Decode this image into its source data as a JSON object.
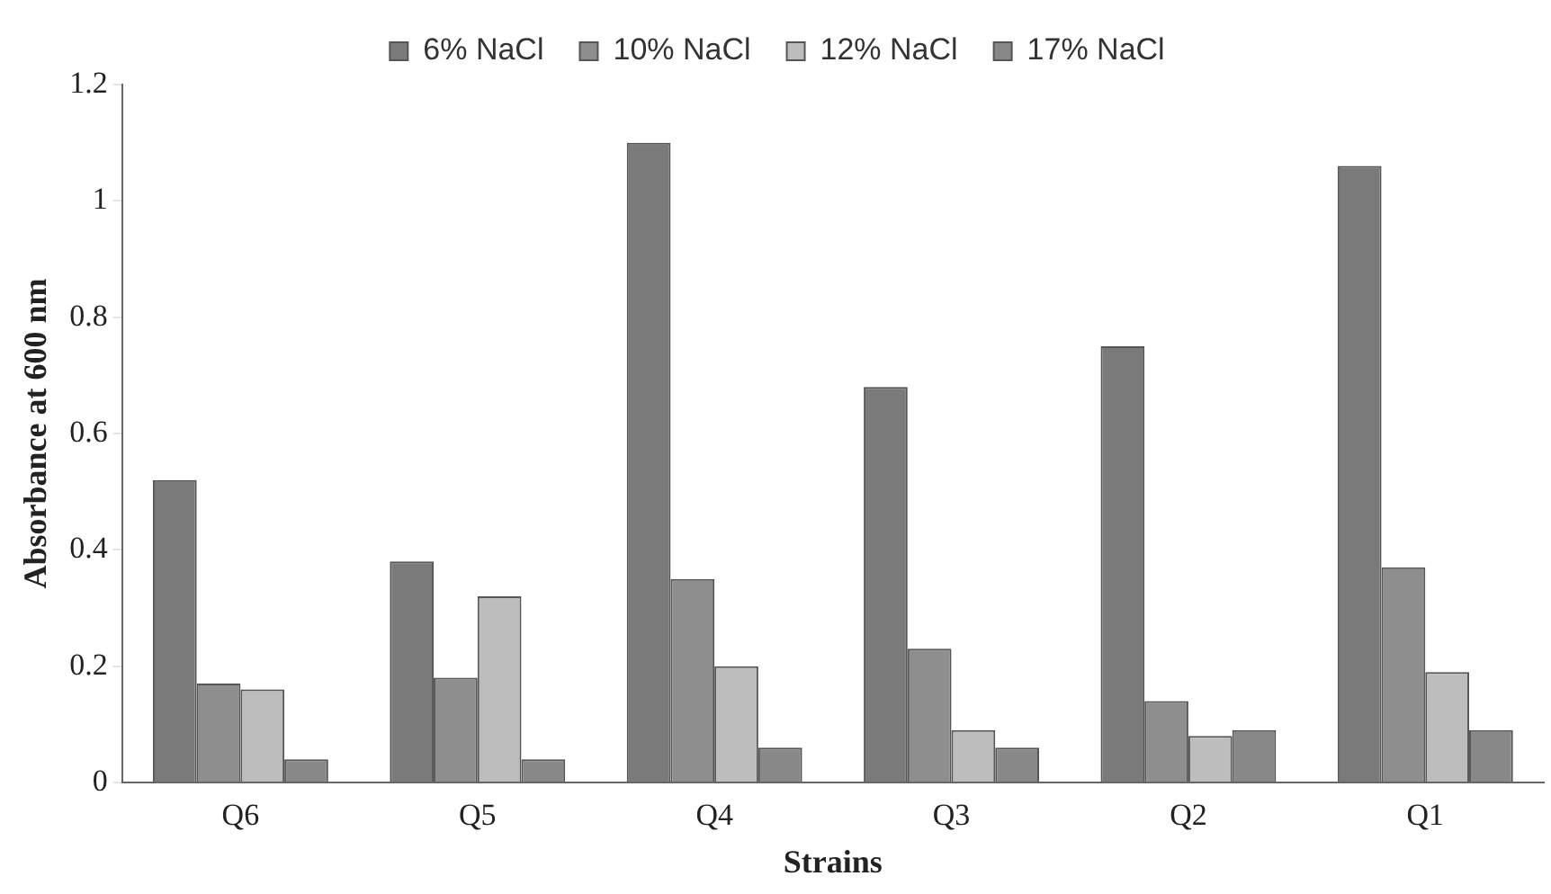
{
  "chart_data": {
    "type": "bar",
    "xlabel": "Strains",
    "ylabel": "Absorbance at 600 nm",
    "categories": [
      "Q6",
      "Q5",
      "Q4",
      "Q3",
      "Q2",
      "Q1"
    ],
    "series": [
      {
        "name": "6% NaCl",
        "color": "#7a7a7a",
        "values": [
          0.52,
          0.38,
          1.1,
          0.68,
          0.75,
          1.06
        ]
      },
      {
        "name": "10% NaCl",
        "color": "#8e8e8e",
        "values": [
          0.17,
          0.18,
          0.35,
          0.23,
          0.14,
          0.37
        ]
      },
      {
        "name": "12% NaCl",
        "color": "#bdbdbd",
        "values": [
          0.16,
          0.32,
          0.2,
          0.09,
          0.08,
          0.19
        ]
      },
      {
        "name": "17% NaCl",
        "color": "#888888",
        "values": [
          0.04,
          0.04,
          0.06,
          0.06,
          0.09,
          0.09
        ]
      }
    ],
    "ylim": [
      0,
      1.2
    ],
    "yticks": [
      0,
      0.2,
      0.4,
      0.6,
      0.8,
      1,
      1.2
    ],
    "grid": false,
    "legend": "top"
  }
}
